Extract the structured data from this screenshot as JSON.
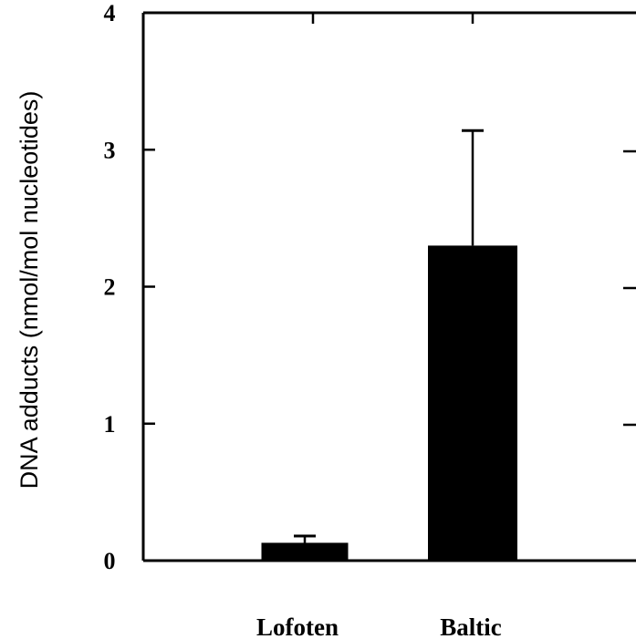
{
  "chart_data": {
    "type": "bar",
    "categories": [
      "Lofoten",
      "Baltic"
    ],
    "values": [
      0.13,
      2.3
    ],
    "error_upper": [
      0.18,
      3.14
    ],
    "ylabel": "DNA adducts (nmol/mol nucleotides)",
    "xlabel": "",
    "ylim": [
      0,
      4
    ],
    "yticks": [
      "0",
      "1",
      "2",
      "3",
      "4"
    ],
    "bar_color": "#000000",
    "grid": false,
    "legend": "none"
  }
}
